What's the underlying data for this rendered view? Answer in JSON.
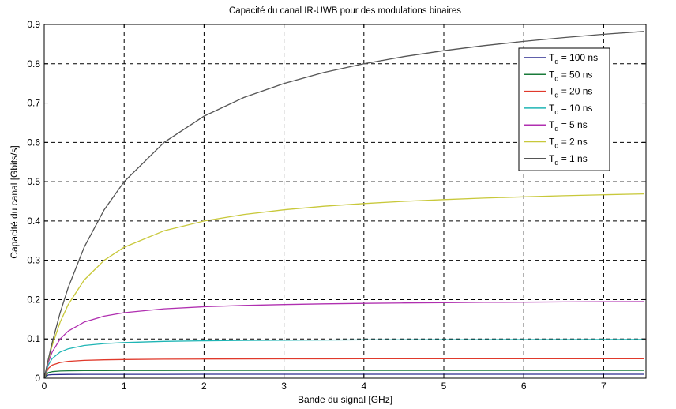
{
  "chart_data": {
    "type": "line",
    "title": "Capacité du canal IR-UWB pour des modulations binaires",
    "xlabel": "Bande du signal [GHz]",
    "ylabel": "Capacité du canal [Gbits/s]",
    "xlim": [
      0,
      7.5
    ],
    "ylim": [
      0,
      0.9
    ],
    "xticks": [
      0,
      1,
      2,
      3,
      4,
      5,
      6,
      7
    ],
    "yticks": [
      0,
      0.1,
      0.2,
      0.3,
      0.4,
      0.5,
      0.6,
      0.7,
      0.8,
      0.9
    ],
    "xtick_labels": [
      "0",
      "1",
      "2",
      "3",
      "4",
      "5",
      "6",
      "7"
    ],
    "ytick_labels": [
      "0",
      "0.1",
      "0.2",
      "0.3",
      "0.4",
      "0.5",
      "0.6",
      "0.7",
      "0.8",
      "0.9"
    ],
    "grid": true,
    "legend_position": "top-right",
    "x": [
      0,
      0.05,
      0.1,
      0.2,
      0.3,
      0.5,
      0.75,
      1,
      1.5,
      2,
      2.5,
      3,
      3.5,
      4,
      4.5,
      5,
      5.5,
      6,
      6.5,
      7,
      7.5
    ],
    "series": [
      {
        "name": "100 ns",
        "legend_label": {
          "prefix": "T",
          "subscript": "d",
          "suffix": "= 100 ns"
        },
        "color": "#2b2b8f",
        "values": [
          0,
          0.0083,
          0.0091,
          0.0095,
          0.0097,
          0.0098,
          0.0099,
          0.0099,
          0.0099,
          0.01,
          0.01,
          0.01,
          0.01,
          0.01,
          0.01,
          0.01,
          0.01,
          0.01,
          0.01,
          0.01,
          0.01
        ]
      },
      {
        "name": "50 ns",
        "legend_label": {
          "prefix": "T",
          "subscript": "d",
          "suffix": "= 50 ns"
        },
        "color": "#1a7a3a",
        "values": [
          0,
          0.0143,
          0.0167,
          0.0182,
          0.0188,
          0.0192,
          0.0195,
          0.0196,
          0.0197,
          0.0198,
          0.0198,
          0.0199,
          0.0199,
          0.0199,
          0.0199,
          0.0199,
          0.0199,
          0.0199,
          0.0199,
          0.0199,
          0.0199
        ]
      },
      {
        "name": "20 ns",
        "legend_label": {
          "prefix": "T",
          "subscript": "d",
          "suffix": "= 20 ns"
        },
        "color": "#e0392b",
        "values": [
          0,
          0.025,
          0.0333,
          0.04,
          0.0429,
          0.0455,
          0.0469,
          0.0476,
          0.0484,
          0.0488,
          0.049,
          0.0492,
          0.0493,
          0.0494,
          0.0495,
          0.0495,
          0.0496,
          0.0496,
          0.0496,
          0.0496,
          0.0497
        ]
      },
      {
        "name": "10 ns",
        "legend_label": {
          "prefix": "T",
          "subscript": "d",
          "suffix": "= 10 ns"
        },
        "color": "#1fb5b5",
        "values": [
          0,
          0.0333,
          0.05,
          0.0667,
          0.075,
          0.0833,
          0.0882,
          0.0909,
          0.0938,
          0.0952,
          0.0962,
          0.0968,
          0.0972,
          0.0976,
          0.0978,
          0.098,
          0.0982,
          0.0984,
          0.0985,
          0.0986,
          0.0987
        ]
      },
      {
        "name": "5 ns",
        "legend_label": {
          "prefix": "T",
          "subscript": "d",
          "suffix": "= 5 ns"
        },
        "color": "#b02fb0",
        "values": [
          0,
          0.04,
          0.0667,
          0.1,
          0.12,
          0.1429,
          0.1579,
          0.1667,
          0.1765,
          0.1818,
          0.1852,
          0.1875,
          0.1892,
          0.1905,
          0.1915,
          0.1923,
          0.193,
          0.1935,
          0.194,
          0.1944,
          0.1948
        ]
      },
      {
        "name": "2 ns",
        "legend_label": {
          "prefix": "T",
          "subscript": "d",
          "suffix": "= 2 ns"
        },
        "color": "#c8c83a",
        "values": [
          0,
          0.0455,
          0.0833,
          0.1429,
          0.1875,
          0.25,
          0.3,
          0.3333,
          0.375,
          0.4,
          0.4167,
          0.4286,
          0.4375,
          0.4444,
          0.45,
          0.4545,
          0.4583,
          0.4615,
          0.4643,
          0.4667,
          0.4688
        ]
      },
      {
        "name": "1 ns",
        "legend_label": {
          "prefix": "T",
          "subscript": "d",
          "suffix": "= 1 ns"
        },
        "color": "#555555",
        "values": [
          0,
          0.0476,
          0.0909,
          0.1667,
          0.2308,
          0.3333,
          0.4286,
          0.5,
          0.6,
          0.6667,
          0.7143,
          0.75,
          0.7778,
          0.8,
          0.8182,
          0.8333,
          0.8462,
          0.8571,
          0.8667,
          0.875,
          0.8824
        ]
      }
    ]
  }
}
